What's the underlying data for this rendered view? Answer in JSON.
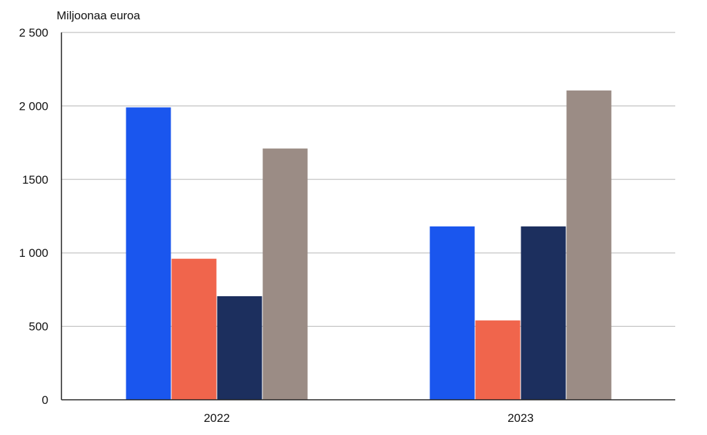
{
  "chart_data": {
    "type": "bar",
    "title": "",
    "ylabel": "Miljoonaa euroa",
    "xlabel": "",
    "categories": [
      "2022",
      "2023"
    ],
    "series": [
      {
        "values": [
          1990,
          1180
        ],
        "color": "#1A56EE"
      },
      {
        "values": [
          960,
          540
        ],
        "color": "#F0654C"
      },
      {
        "values": [
          705,
          1180
        ],
        "color": "#1C2F5E"
      },
      {
        "values": [
          1710,
          2105
        ],
        "color": "#9B8C85"
      }
    ],
    "ylim": [
      0,
      2500
    ],
    "yticks": [
      0,
      500,
      1000,
      1500,
      2000,
      2500
    ],
    "ytick_labels": [
      "0",
      "500",
      "1 000",
      "1500",
      "2 000",
      "2 500"
    ],
    "grid": true,
    "legend": "none"
  }
}
